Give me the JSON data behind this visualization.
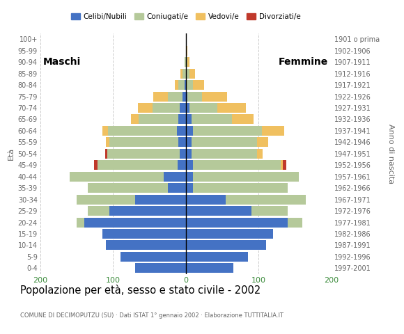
{
  "age_groups": [
    "0-4",
    "5-9",
    "10-14",
    "15-19",
    "20-24",
    "25-29",
    "30-34",
    "35-39",
    "40-44",
    "45-49",
    "50-54",
    "55-59",
    "60-64",
    "65-69",
    "70-74",
    "75-79",
    "80-84",
    "85-89",
    "90-94",
    "95-99",
    "100+"
  ],
  "birth_years": [
    "1997-2001",
    "1992-1996",
    "1987-1991",
    "1982-1986",
    "1977-1981",
    "1972-1976",
    "1967-1971",
    "1962-1966",
    "1957-1961",
    "1952-1956",
    "1947-1951",
    "1942-1946",
    "1937-1941",
    "1932-1936",
    "1927-1931",
    "1922-1926",
    "1917-1921",
    "1912-1916",
    "1907-1911",
    "1902-1906",
    "1901 o prima"
  ],
  "males": {
    "celibi": [
      70,
      90,
      110,
      115,
      140,
      105,
      70,
      25,
      30,
      11,
      8,
      10,
      12,
      10,
      8,
      5,
      2,
      0,
      0,
      0,
      0
    ],
    "coniugati": [
      0,
      0,
      0,
      0,
      10,
      30,
      80,
      110,
      130,
      110,
      100,
      95,
      95,
      55,
      38,
      20,
      8,
      5,
      2,
      0,
      0
    ],
    "vedovi": [
      0,
      0,
      0,
      0,
      0,
      0,
      0,
      0,
      0,
      0,
      0,
      5,
      8,
      10,
      20,
      20,
      5,
      2,
      0,
      0,
      0
    ],
    "divorziati": [
      0,
      0,
      0,
      0,
      0,
      0,
      0,
      0,
      0,
      5,
      3,
      0,
      0,
      0,
      0,
      0,
      0,
      0,
      0,
      0,
      0
    ]
  },
  "females": {
    "nubili": [
      65,
      85,
      110,
      120,
      140,
      90,
      55,
      10,
      10,
      10,
      8,
      8,
      10,
      8,
      5,
      2,
      0,
      0,
      0,
      0,
      0
    ],
    "coniugate": [
      0,
      0,
      0,
      0,
      20,
      50,
      110,
      130,
      145,
      120,
      90,
      90,
      95,
      55,
      38,
      20,
      10,
      5,
      2,
      0,
      0
    ],
    "vedove": [
      0,
      0,
      0,
      0,
      0,
      0,
      0,
      0,
      0,
      3,
      8,
      15,
      30,
      30,
      40,
      35,
      15,
      8,
      3,
      2,
      0
    ],
    "divorziate": [
      0,
      0,
      0,
      0,
      0,
      0,
      0,
      0,
      0,
      5,
      0,
      0,
      0,
      0,
      0,
      0,
      0,
      0,
      0,
      0,
      0
    ]
  },
  "color_celibi": "#4472c4",
  "color_coniugati": "#b5c99a",
  "color_vedovi": "#f0c060",
  "color_divorziati": "#c0392b",
  "title": "Popolazione per età, sesso e stato civile - 2002",
  "subtitle": "COMUNE DI DECIMOPUTZU (SU) · Dati ISTAT 1° gennaio 2002 · Elaborazione TUTTITALIA.IT",
  "xlim": 200,
  "xlabel_left": "Maschi",
  "xlabel_right": "Femmine",
  "ylabel": "Età",
  "ylabel_right": "Anno di nascita",
  "bg_color": "#ffffff",
  "grid_color": "#cccccc",
  "tick_color": "#3a8a3a",
  "label_color": "#666666"
}
